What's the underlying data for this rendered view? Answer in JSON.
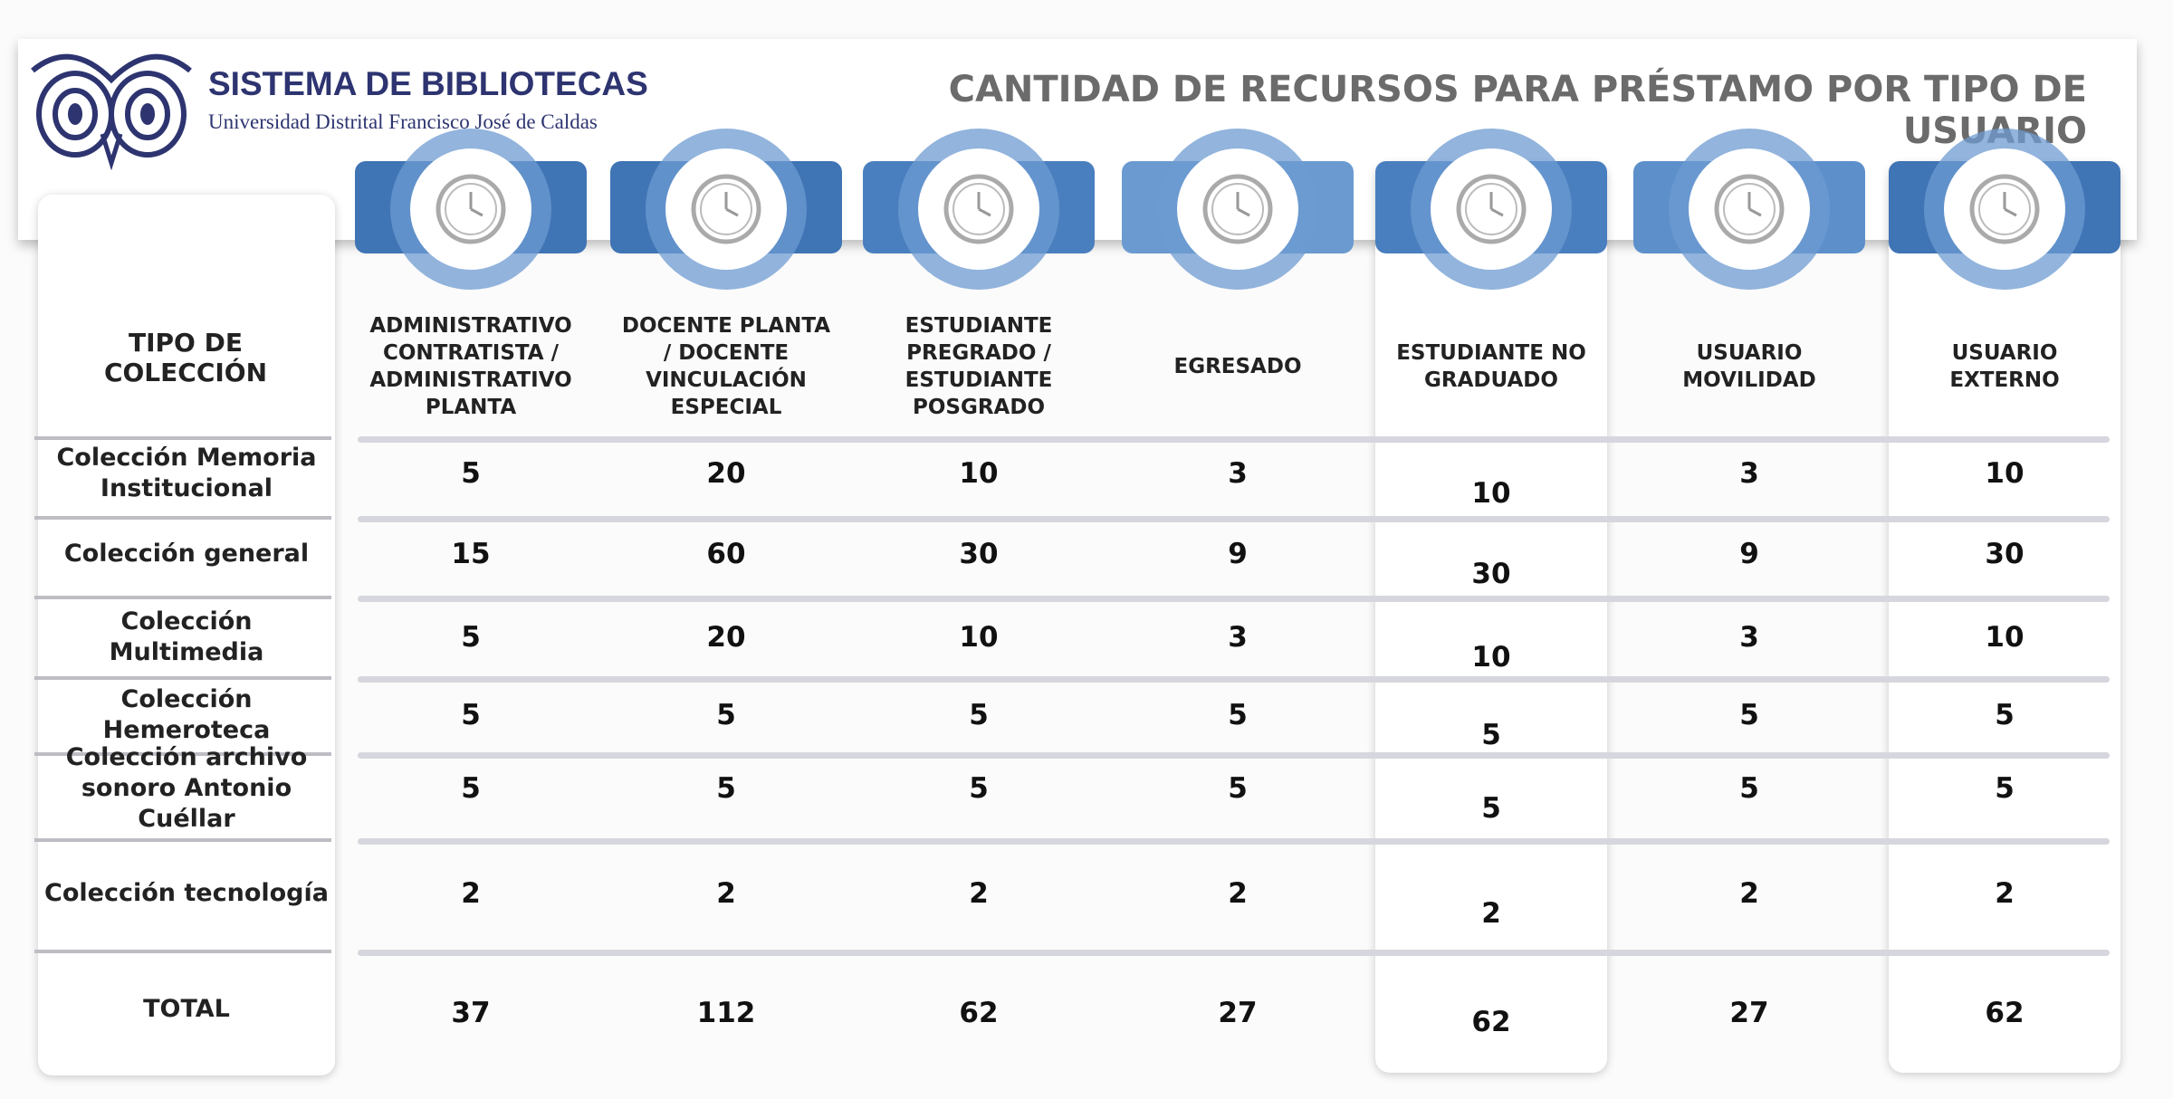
{
  "header": {
    "title": "SISTEMA DE BIBLIOTECAS",
    "subtitle": "Universidad Distrital Francisco José de Caldas",
    "heading": "CANTIDAD DE RECURSOS PARA PRÉSTAMO POR TIPO DE USUARIO"
  },
  "table": {
    "corner": "TIPO DE COLECCIÓN",
    "columns": [
      "ADMINISTRATIVO CONTRATISTA / ADMINISTRATIVO PLANTA",
      "DOCENTE PLANTA / DOCENTE VINCULACIÓN ESPECIAL",
      "ESTUDIANTE PREGRADO / ESTUDIANTE POSGRADO",
      "EGRESADO",
      "ESTUDIANTE NO GRADUADO",
      "USUARIO MOVILIDAD",
      "USUARIO EXTERNO"
    ],
    "rows": [
      {
        "label": "Colección Memoria Institucional",
        "values": [
          5,
          20,
          10,
          3,
          10,
          3,
          10
        ]
      },
      {
        "label": "Colección general",
        "values": [
          15,
          60,
          30,
          9,
          30,
          9,
          30
        ]
      },
      {
        "label": "Colección Multimedia",
        "values": [
          5,
          20,
          10,
          3,
          10,
          3,
          10
        ]
      },
      {
        "label": "Colección Hemeroteca",
        "values": [
          5,
          5,
          5,
          5,
          5,
          5,
          5
        ]
      },
      {
        "label": "Colección archivo sonoro Antonio Cuéllar",
        "values": [
          5,
          5,
          5,
          5,
          5,
          5,
          5
        ]
      },
      {
        "label": "Colección tecnología",
        "values": [
          2,
          2,
          2,
          2,
          2,
          2,
          2
        ]
      }
    ],
    "total": {
      "label": "TOTAL",
      "values": [
        37,
        112,
        62,
        27,
        62,
        27,
        62
      ]
    }
  }
}
